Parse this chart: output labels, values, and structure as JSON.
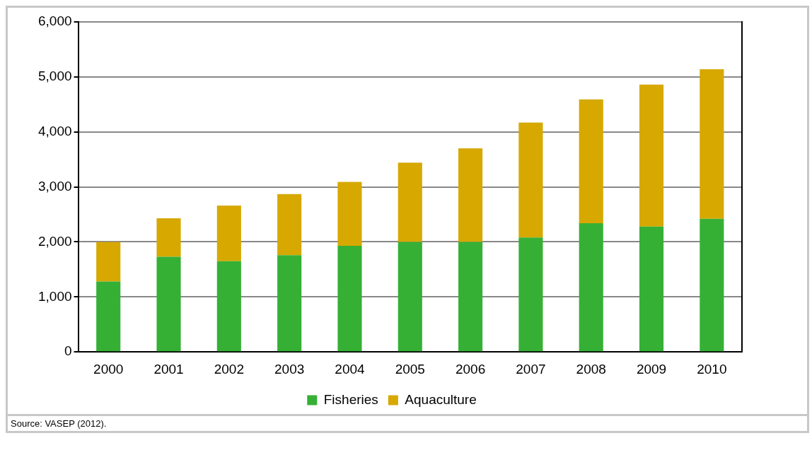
{
  "chart_data": {
    "type": "bar",
    "stacked": true,
    "categories": [
      "2000",
      "2001",
      "2002",
      "2003",
      "2004",
      "2005",
      "2006",
      "2007",
      "2008",
      "2009",
      "2010"
    ],
    "series": [
      {
        "name": "Fisheries",
        "color": "#35b035",
        "values": [
          1280,
          1730,
          1650,
          1760,
          1930,
          2000,
          2000,
          2080,
          2340,
          2280,
          2420
        ]
      },
      {
        "name": "Aquaculture",
        "color": "#d6a800",
        "values": [
          720,
          700,
          1010,
          1110,
          1160,
          1440,
          1700,
          2090,
          2250,
          2580,
          2720
        ]
      }
    ],
    "ylim": [
      0,
      6000
    ],
    "yticks": [
      {
        "value": 0,
        "label": "0"
      },
      {
        "value": 1000,
        "label": "1,000"
      },
      {
        "value": 2000,
        "label": "2,000"
      },
      {
        "value": 3000,
        "label": "3,000"
      },
      {
        "value": 4000,
        "label": "4,000"
      },
      {
        "value": 5000,
        "label": "5,000"
      },
      {
        "value": 6000,
        "label": "6,000"
      }
    ],
    "grid": "y",
    "legend": "bottom",
    "annotations": [
      "Source: VASEP (2012)."
    ]
  }
}
